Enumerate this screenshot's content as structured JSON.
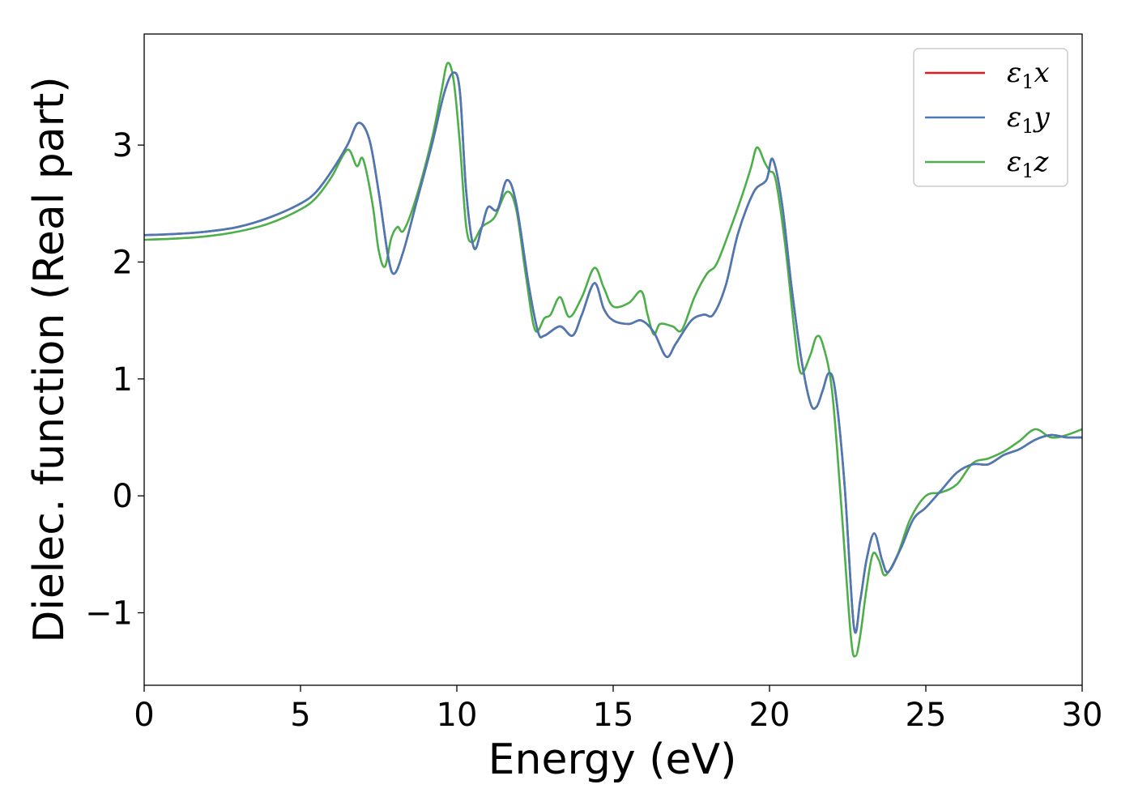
{
  "chart_data": {
    "type": "line",
    "title": "",
    "xlabel": "Energy (eV)",
    "ylabel": "Dielec. function (Real part)",
    "xlim": [
      0,
      30
    ],
    "ylim": [
      -1.62,
      3.95
    ],
    "xticks": [
      0,
      5,
      10,
      15,
      20,
      25,
      30
    ],
    "yticks": [
      -1,
      0,
      1,
      2,
      3
    ],
    "xtick_labels": [
      "0",
      "5",
      "10",
      "15",
      "20",
      "25",
      "30"
    ],
    "ytick_labels": [
      "−1",
      "0",
      "1",
      "2",
      "3"
    ],
    "grid": false,
    "legend_position": "top-right",
    "series": [
      {
        "name": "ε1x",
        "legend_main": "ε",
        "legend_sub": "1",
        "legend_var": "x",
        "color": "#e41a1c",
        "points": [
          [
            0,
            2.23
          ],
          [
            1,
            2.24
          ],
          [
            2,
            2.26
          ],
          [
            3,
            2.3
          ],
          [
            4,
            2.38
          ],
          [
            5,
            2.5
          ],
          [
            5.5,
            2.6
          ],
          [
            6,
            2.78
          ],
          [
            6.5,
            3.0
          ],
          [
            6.85,
            3.19
          ],
          [
            7.2,
            3.05
          ],
          [
            7.5,
            2.6
          ],
          [
            7.8,
            2.05
          ],
          [
            8.0,
            1.9
          ],
          [
            8.3,
            2.1
          ],
          [
            8.7,
            2.5
          ],
          [
            9.2,
            3.0
          ],
          [
            9.6,
            3.45
          ],
          [
            9.9,
            3.62
          ],
          [
            10.1,
            3.45
          ],
          [
            10.3,
            2.6
          ],
          [
            10.55,
            2.12
          ],
          [
            10.8,
            2.3
          ],
          [
            11.0,
            2.47
          ],
          [
            11.3,
            2.45
          ],
          [
            11.6,
            2.7
          ],
          [
            11.9,
            2.5
          ],
          [
            12.3,
            1.8
          ],
          [
            12.6,
            1.4
          ],
          [
            12.8,
            1.37
          ],
          [
            13.3,
            1.45
          ],
          [
            13.7,
            1.37
          ],
          [
            14.0,
            1.55
          ],
          [
            14.4,
            1.82
          ],
          [
            14.7,
            1.6
          ],
          [
            15.0,
            1.5
          ],
          [
            15.5,
            1.47
          ],
          [
            15.9,
            1.5
          ],
          [
            16.3,
            1.4
          ],
          [
            16.7,
            1.19
          ],
          [
            17.0,
            1.3
          ],
          [
            17.5,
            1.5
          ],
          [
            17.9,
            1.55
          ],
          [
            18.2,
            1.55
          ],
          [
            18.6,
            1.8
          ],
          [
            19.0,
            2.25
          ],
          [
            19.5,
            2.6
          ],
          [
            19.9,
            2.7
          ],
          [
            20.1,
            2.88
          ],
          [
            20.4,
            2.5
          ],
          [
            20.7,
            1.8
          ],
          [
            21.0,
            1.2
          ],
          [
            21.3,
            0.8
          ],
          [
            21.5,
            0.76
          ],
          [
            21.7,
            0.9
          ],
          [
            21.9,
            1.05
          ],
          [
            22.1,
            0.9
          ],
          [
            22.4,
            0.1
          ],
          [
            22.7,
            -1.12
          ],
          [
            22.9,
            -0.9
          ],
          [
            23.1,
            -0.55
          ],
          [
            23.35,
            -0.32
          ],
          [
            23.6,
            -0.55
          ],
          [
            23.8,
            -0.65
          ],
          [
            24.2,
            -0.45
          ],
          [
            24.6,
            -0.2
          ],
          [
            25.0,
            -0.1
          ],
          [
            25.5,
            0.05
          ],
          [
            26.0,
            0.2
          ],
          [
            26.5,
            0.27
          ],
          [
            27.0,
            0.27
          ],
          [
            27.5,
            0.35
          ],
          [
            28.0,
            0.4
          ],
          [
            28.5,
            0.48
          ],
          [
            29.0,
            0.52
          ],
          [
            29.5,
            0.5
          ],
          [
            30.0,
            0.5
          ]
        ]
      },
      {
        "name": "ε1y",
        "legend_main": "ε",
        "legend_sub": "1",
        "legend_var": "y",
        "color": "#4a7ab5",
        "points": [
          [
            0,
            2.23
          ],
          [
            1,
            2.24
          ],
          [
            2,
            2.26
          ],
          [
            3,
            2.3
          ],
          [
            4,
            2.38
          ],
          [
            5,
            2.5
          ],
          [
            5.5,
            2.6
          ],
          [
            6,
            2.78
          ],
          [
            6.5,
            3.0
          ],
          [
            6.85,
            3.19
          ],
          [
            7.2,
            3.05
          ],
          [
            7.5,
            2.6
          ],
          [
            7.8,
            2.05
          ],
          [
            8.0,
            1.9
          ],
          [
            8.3,
            2.1
          ],
          [
            8.7,
            2.5
          ],
          [
            9.2,
            3.0
          ],
          [
            9.6,
            3.45
          ],
          [
            9.9,
            3.62
          ],
          [
            10.1,
            3.45
          ],
          [
            10.3,
            2.6
          ],
          [
            10.55,
            2.12
          ],
          [
            10.8,
            2.3
          ],
          [
            11.0,
            2.47
          ],
          [
            11.3,
            2.45
          ],
          [
            11.6,
            2.7
          ],
          [
            11.9,
            2.5
          ],
          [
            12.3,
            1.8
          ],
          [
            12.6,
            1.4
          ],
          [
            12.8,
            1.37
          ],
          [
            13.3,
            1.45
          ],
          [
            13.7,
            1.37
          ],
          [
            14.0,
            1.55
          ],
          [
            14.4,
            1.82
          ],
          [
            14.7,
            1.6
          ],
          [
            15.0,
            1.5
          ],
          [
            15.5,
            1.47
          ],
          [
            15.9,
            1.5
          ],
          [
            16.3,
            1.4
          ],
          [
            16.7,
            1.19
          ],
          [
            17.0,
            1.3
          ],
          [
            17.5,
            1.5
          ],
          [
            17.9,
            1.55
          ],
          [
            18.2,
            1.55
          ],
          [
            18.6,
            1.8
          ],
          [
            19.0,
            2.25
          ],
          [
            19.5,
            2.6
          ],
          [
            19.9,
            2.7
          ],
          [
            20.1,
            2.88
          ],
          [
            20.4,
            2.5
          ],
          [
            20.7,
            1.8
          ],
          [
            21.0,
            1.2
          ],
          [
            21.3,
            0.8
          ],
          [
            21.5,
            0.76
          ],
          [
            21.7,
            0.9
          ],
          [
            21.9,
            1.05
          ],
          [
            22.1,
            0.9
          ],
          [
            22.4,
            0.1
          ],
          [
            22.7,
            -1.12
          ],
          [
            22.9,
            -0.9
          ],
          [
            23.1,
            -0.55
          ],
          [
            23.35,
            -0.32
          ],
          [
            23.6,
            -0.55
          ],
          [
            23.8,
            -0.65
          ],
          [
            24.2,
            -0.45
          ],
          [
            24.6,
            -0.2
          ],
          [
            25.0,
            -0.1
          ],
          [
            25.5,
            0.05
          ],
          [
            26.0,
            0.2
          ],
          [
            26.5,
            0.27
          ],
          [
            27.0,
            0.27
          ],
          [
            27.5,
            0.35
          ],
          [
            28.0,
            0.4
          ],
          [
            28.5,
            0.48
          ],
          [
            29.0,
            0.52
          ],
          [
            29.5,
            0.5
          ],
          [
            30.0,
            0.5
          ]
        ]
      },
      {
        "name": "ε1z",
        "legend_main": "ε",
        "legend_sub": "1",
        "legend_var": "z",
        "color": "#4daf4a",
        "points": [
          [
            0,
            2.19
          ],
          [
            1,
            2.2
          ],
          [
            2,
            2.22
          ],
          [
            3,
            2.26
          ],
          [
            4,
            2.33
          ],
          [
            5,
            2.45
          ],
          [
            5.5,
            2.55
          ],
          [
            6,
            2.73
          ],
          [
            6.5,
            2.96
          ],
          [
            6.8,
            2.82
          ],
          [
            7.0,
            2.88
          ],
          [
            7.3,
            2.5
          ],
          [
            7.5,
            2.1
          ],
          [
            7.7,
            1.96
          ],
          [
            7.9,
            2.2
          ],
          [
            8.1,
            2.3
          ],
          [
            8.3,
            2.27
          ],
          [
            8.7,
            2.55
          ],
          [
            9.2,
            3.05
          ],
          [
            9.5,
            3.45
          ],
          [
            9.7,
            3.7
          ],
          [
            9.9,
            3.55
          ],
          [
            10.1,
            3.0
          ],
          [
            10.3,
            2.3
          ],
          [
            10.5,
            2.17
          ],
          [
            10.8,
            2.3
          ],
          [
            11.2,
            2.38
          ],
          [
            11.6,
            2.6
          ],
          [
            11.9,
            2.45
          ],
          [
            12.2,
            1.9
          ],
          [
            12.5,
            1.42
          ],
          [
            12.8,
            1.52
          ],
          [
            13.0,
            1.55
          ],
          [
            13.3,
            1.7
          ],
          [
            13.6,
            1.53
          ],
          [
            14.0,
            1.7
          ],
          [
            14.4,
            1.95
          ],
          [
            14.7,
            1.78
          ],
          [
            15.0,
            1.62
          ],
          [
            15.5,
            1.65
          ],
          [
            15.9,
            1.75
          ],
          [
            16.1,
            1.55
          ],
          [
            16.3,
            1.38
          ],
          [
            16.5,
            1.47
          ],
          [
            16.9,
            1.45
          ],
          [
            17.2,
            1.42
          ],
          [
            17.6,
            1.7
          ],
          [
            18.0,
            1.9
          ],
          [
            18.3,
            1.98
          ],
          [
            18.7,
            2.25
          ],
          [
            19.1,
            2.55
          ],
          [
            19.4,
            2.8
          ],
          [
            19.6,
            2.98
          ],
          [
            19.85,
            2.85
          ],
          [
            20.0,
            2.78
          ],
          [
            20.2,
            2.7
          ],
          [
            20.5,
            2.15
          ],
          [
            20.8,
            1.4
          ],
          [
            21.0,
            1.05
          ],
          [
            21.3,
            1.2
          ],
          [
            21.5,
            1.36
          ],
          [
            21.7,
            1.3
          ],
          [
            22.0,
            0.9
          ],
          [
            22.3,
            -0.1
          ],
          [
            22.6,
            -1.2
          ],
          [
            22.75,
            -1.37
          ],
          [
            22.9,
            -1.2
          ],
          [
            23.1,
            -0.8
          ],
          [
            23.3,
            -0.5
          ],
          [
            23.5,
            -0.55
          ],
          [
            23.7,
            -0.68
          ],
          [
            24.1,
            -0.5
          ],
          [
            24.5,
            -0.2
          ],
          [
            25.0,
            0.0
          ],
          [
            25.5,
            0.03
          ],
          [
            26.0,
            0.1
          ],
          [
            26.5,
            0.28
          ],
          [
            27.0,
            0.32
          ],
          [
            27.5,
            0.38
          ],
          [
            28.0,
            0.47
          ],
          [
            28.5,
            0.57
          ],
          [
            29.0,
            0.5
          ],
          [
            29.5,
            0.52
          ],
          [
            30.0,
            0.57
          ]
        ]
      }
    ]
  }
}
